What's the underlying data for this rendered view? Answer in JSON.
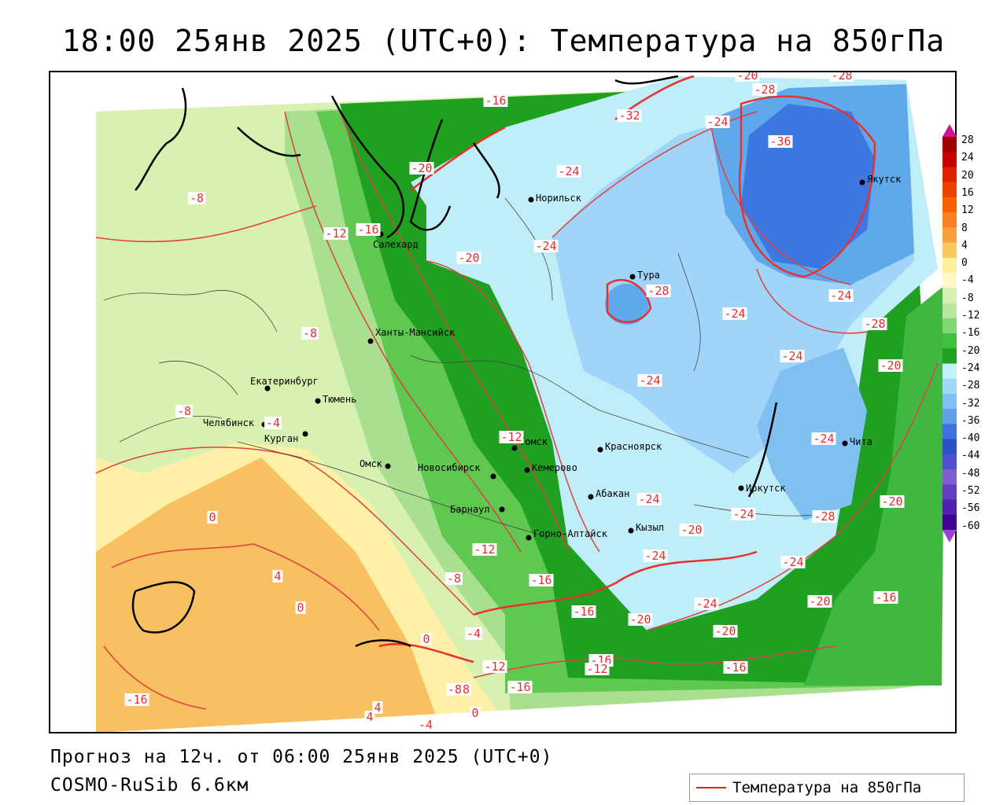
{
  "title": "18:00 25янв 2025 (UTC+0): Температура на 850гПа",
  "footer": {
    "forecast": "Прогноз на 12ч. от 06:00 25янв 2025 (UTC+0)",
    "model": "COSMO-RuSib 6.6км"
  },
  "legend": {
    "label": "Температура на 850гПа",
    "line_color": "#e02020"
  },
  "colorbar": {
    "ticks": [
      "28",
      "24",
      "20",
      "16",
      "12",
      "8",
      "4",
      "0",
      "-4",
      "-8",
      "-12",
      "-16",
      "-20",
      "-24",
      "-28",
      "-32",
      "-36",
      "-40",
      "-44",
      "-48",
      "-52",
      "-56",
      "-60"
    ],
    "colors": [
      "#a00000",
      "#c80000",
      "#e02000",
      "#f04000",
      "#f86000",
      "#f88020",
      "#f8a040",
      "#f8c860",
      "#fff0a0",
      "#fff8c8",
      "#d8f0b0",
      "#b8e8a0",
      "#80d870",
      "#40c040",
      "#20a020",
      "#c0f0f8",
      "#a0d8f8",
      "#80c0f0",
      "#60a0e8",
      "#4070e0",
      "#3050c8",
      "#5050d0",
      "#8060d0",
      "#6040c0",
      "#5020b0",
      "#400090"
    ]
  },
  "cities": [
    {
      "name": "Норильск"
    },
    {
      "name": "Салехард"
    },
    {
      "name": "Ханты-Мансийск"
    },
    {
      "name": "Тура"
    },
    {
      "name": "Якутск"
    },
    {
      "name": "Екатеринбург"
    },
    {
      "name": "Тюмень"
    },
    {
      "name": "Челябинск"
    },
    {
      "name": "Курган"
    },
    {
      "name": "Омск"
    },
    {
      "name": "Новосибирск"
    },
    {
      "name": "Томск"
    },
    {
      "name": "Кемерово"
    },
    {
      "name": "Красноярск"
    },
    {
      "name": "Барнаул"
    },
    {
      "name": "Абакан"
    },
    {
      "name": "Горно-Алтайск"
    },
    {
      "name": "Кызыл"
    },
    {
      "name": "Иркутск"
    },
    {
      "name": "Чита"
    }
  ],
  "isolines": [
    "-16",
    "-20",
    "-28",
    "-28",
    "-32",
    "-24",
    "-36",
    "-24",
    "-20",
    "-8",
    "-12",
    "-16",
    "-20",
    "-24",
    "-28",
    "-24",
    "-8",
    "-24",
    "-28",
    "-24",
    "-8",
    "-4",
    "-12",
    "-24",
    "-20",
    "-24",
    "-20",
    "0",
    "-24",
    "-20",
    "-24",
    "-12",
    "4",
    "-8",
    "-16",
    "-16",
    "-20",
    "-24",
    "-24",
    "0",
    "-16",
    "-28",
    "-20",
    "-24",
    "-20",
    "-16",
    "0",
    "-4",
    "-12",
    "-16",
    "-16",
    "-12",
    "-8",
    "-16",
    "4",
    "4",
    "0",
    "-4",
    "-8"
  ]
}
